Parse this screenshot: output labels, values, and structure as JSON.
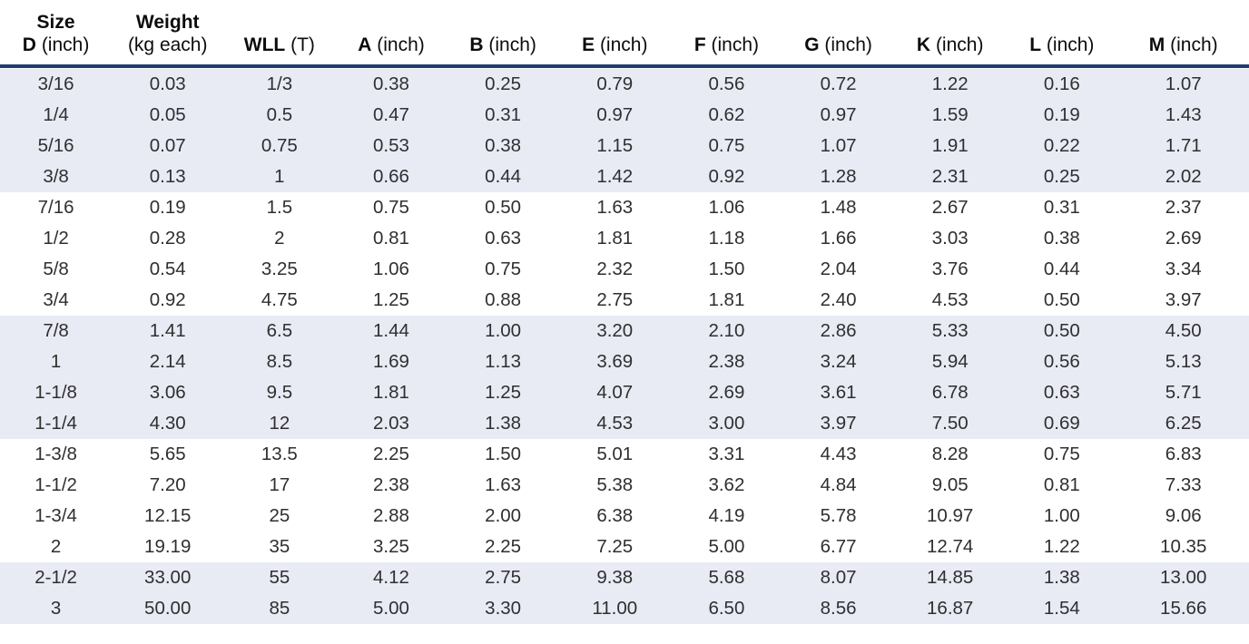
{
  "table": {
    "title": "shackle-dimensions-table",
    "band_color": "#e9ebf4",
    "rule_color": "#1e3d70",
    "columns": [
      {
        "top": "Size",
        "bold": "D",
        "unit": "(inch)"
      },
      {
        "top": "Weight",
        "bold": "",
        "unit": "(kg each)"
      },
      {
        "top": "",
        "bold": "WLL",
        "unit": "(T)"
      },
      {
        "top": "",
        "bold": "A",
        "unit": "(inch)"
      },
      {
        "top": "",
        "bold": "B",
        "unit": "(inch)"
      },
      {
        "top": "",
        "bold": "E",
        "unit": "(inch)"
      },
      {
        "top": "",
        "bold": "F",
        "unit": "(inch)"
      },
      {
        "top": "",
        "bold": "G",
        "unit": "(inch)"
      },
      {
        "top": "",
        "bold": "K",
        "unit": "(inch)"
      },
      {
        "top": "",
        "bold": "L",
        "unit": "(inch)"
      },
      {
        "top": "",
        "bold": "M",
        "unit": "(inch)"
      }
    ],
    "rows": [
      [
        "3/16",
        "0.03",
        "1/3",
        "0.38",
        "0.25",
        "0.79",
        "0.56",
        "0.72",
        "1.22",
        "0.16",
        "1.07"
      ],
      [
        "1/4",
        "0.05",
        "0.5",
        "0.47",
        "0.31",
        "0.97",
        "0.62",
        "0.97",
        "1.59",
        "0.19",
        "1.43"
      ],
      [
        "5/16",
        "0.07",
        "0.75",
        "0.53",
        "0.38",
        "1.15",
        "0.75",
        "1.07",
        "1.91",
        "0.22",
        "1.71"
      ],
      [
        "3/8",
        "0.13",
        "1",
        "0.66",
        "0.44",
        "1.42",
        "0.92",
        "1.28",
        "2.31",
        "0.25",
        "2.02"
      ],
      [
        "7/16",
        "0.19",
        "1.5",
        "0.75",
        "0.50",
        "1.63",
        "1.06",
        "1.48",
        "2.67",
        "0.31",
        "2.37"
      ],
      [
        "1/2",
        "0.28",
        "2",
        "0.81",
        "0.63",
        "1.81",
        "1.18",
        "1.66",
        "3.03",
        "0.38",
        "2.69"
      ],
      [
        "5/8",
        "0.54",
        "3.25",
        "1.06",
        "0.75",
        "2.32",
        "1.50",
        "2.04",
        "3.76",
        "0.44",
        "3.34"
      ],
      [
        "3/4",
        "0.92",
        "4.75",
        "1.25",
        "0.88",
        "2.75",
        "1.81",
        "2.40",
        "4.53",
        "0.50",
        "3.97"
      ],
      [
        "7/8",
        "1.41",
        "6.5",
        "1.44",
        "1.00",
        "3.20",
        "2.10",
        "2.86",
        "5.33",
        "0.50",
        "4.50"
      ],
      [
        "1",
        "2.14",
        "8.5",
        "1.69",
        "1.13",
        "3.69",
        "2.38",
        "3.24",
        "5.94",
        "0.56",
        "5.13"
      ],
      [
        "1-1/8",
        "3.06",
        "9.5",
        "1.81",
        "1.25",
        "4.07",
        "2.69",
        "3.61",
        "6.78",
        "0.63",
        "5.71"
      ],
      [
        "1-1/4",
        "4.30",
        "12",
        "2.03",
        "1.38",
        "4.53",
        "3.00",
        "3.97",
        "7.50",
        "0.69",
        "6.25"
      ],
      [
        "1-3/8",
        "5.65",
        "13.5",
        "2.25",
        "1.50",
        "5.01",
        "3.31",
        "4.43",
        "8.28",
        "0.75",
        "6.83"
      ],
      [
        "1-1/2",
        "7.20",
        "17",
        "2.38",
        "1.63",
        "5.38",
        "3.62",
        "4.84",
        "9.05",
        "0.81",
        "7.33"
      ],
      [
        "1-3/4",
        "12.15",
        "25",
        "2.88",
        "2.00",
        "6.38",
        "4.19",
        "5.78",
        "10.97",
        "1.00",
        "9.06"
      ],
      [
        "2",
        "19.19",
        "35",
        "3.25",
        "2.25",
        "7.25",
        "5.00",
        "6.77",
        "12.74",
        "1.22",
        "10.35"
      ],
      [
        "2-1/2",
        "33.00",
        "55",
        "4.12",
        "2.75",
        "9.38",
        "5.68",
        "8.07",
        "14.85",
        "1.38",
        "13.00"
      ],
      [
        "3",
        "50.00",
        "85",
        "5.00",
        "3.30",
        "11.00",
        "6.50",
        "8.56",
        "16.87",
        "1.54",
        "15.66"
      ]
    ]
  }
}
